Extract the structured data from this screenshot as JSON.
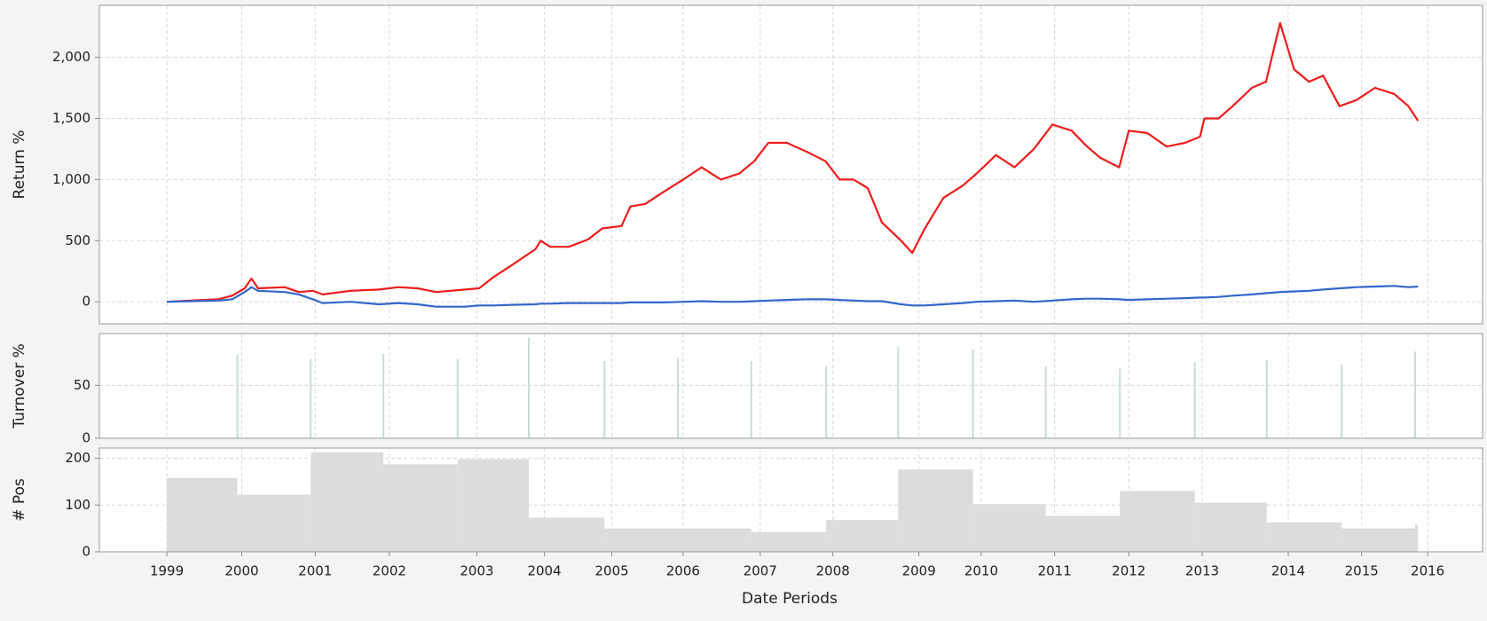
{
  "chart_data": [
    {
      "type": "line",
      "ylabel": "Return %",
      "xlim": [
        1998.09,
        2016.74
      ],
      "ylim": [
        -180,
        2425
      ],
      "yticks": [
        0,
        500,
        {
          "value": 1000,
          "label": "1,000"
        },
        {
          "value": 1500,
          "label": "1,500"
        },
        {
          "value": 2000,
          "label": "2,000"
        }
      ],
      "grid": true,
      "x": [
        1999.0,
        1999.31,
        1999.69,
        1999.88,
        2000.05,
        2000.14,
        2000.23,
        2000.59,
        2000.78,
        2000.97,
        2001.1,
        2001.48,
        2001.86,
        2002.12,
        2002.38,
        2002.63,
        2003.02,
        2003.21,
        2003.4,
        2003.65,
        2003.97,
        2004.04,
        2004.17,
        2004.42,
        2004.68,
        2004.87,
        2005.13,
        2005.25,
        2005.45,
        2005.7,
        2005.96,
        2006.21,
        2006.47,
        2006.72,
        2006.92,
        2007.11,
        2007.36,
        2007.62,
        2007.88,
        2008.07,
        2008.26,
        2008.45,
        2008.64,
        2008.9,
        2009.05,
        2009.22,
        2009.47,
        2009.73,
        2009.92,
        2010.18,
        2010.43,
        2010.69,
        2010.94,
        2011.2,
        2011.39,
        2011.58,
        2011.84,
        2011.97,
        2012.22,
        2012.48,
        2012.73,
        2012.93,
        2012.99,
        2013.18,
        2013.37,
        2013.63,
        2013.82,
        2014.01,
        2014.2,
        2014.4,
        2014.59,
        2014.81,
        2015.04,
        2015.29,
        2015.55,
        2015.74,
        2015.87
      ],
      "series": [
        {
          "color": "#ee1c1c",
          "values": [
            0,
            10,
            20,
            50,
            110,
            190,
            110,
            120,
            80,
            90,
            60,
            90,
            100,
            120,
            110,
            80,
            100,
            110,
            200,
            300,
            430,
            500,
            450,
            450,
            510,
            600,
            620,
            780,
            800,
            900,
            1000,
            1100,
            1000,
            1050,
            1150,
            1300,
            1300,
            1230,
            1150,
            1000,
            1000,
            930,
            650,
            500,
            400,
            600,
            850,
            950,
            1050,
            1200,
            1100,
            1250,
            1450,
            1400,
            1280,
            1180,
            1100,
            1400,
            1380,
            1270,
            1300,
            1350,
            1500,
            1500,
            1600,
            1750,
            1800,
            2280,
            1900,
            1800,
            1850,
            1600,
            1650,
            1750,
            1700,
            1600,
            1480
          ]
        },
        {
          "color": "#3366cc",
          "values": [
            0,
            5,
            10,
            20,
            80,
            120,
            90,
            80,
            60,
            20,
            -10,
            0,
            -20,
            -10,
            -20,
            -40,
            -40,
            -30,
            -30,
            -25,
            -20,
            -15,
            -15,
            -10,
            -10,
            -10,
            -10,
            -5,
            -5,
            -5,
            0,
            5,
            0,
            0,
            5,
            10,
            15,
            20,
            20,
            15,
            10,
            5,
            5,
            -20,
            -30,
            -30,
            -20,
            -10,
            0,
            5,
            10,
            0,
            10,
            20,
            25,
            25,
            20,
            15,
            20,
            25,
            30,
            35,
            35,
            40,
            50,
            60,
            70,
            80,
            85,
            90,
            100,
            110,
            120,
            125,
            130,
            120,
            125
          ]
        }
      ]
    },
    {
      "type": "bar",
      "ylabel": "Turnover %",
      "xlim": [
        1998.09,
        2016.74
      ],
      "ylim": [
        0,
        99
      ],
      "yticks": [
        0,
        50
      ],
      "grid": true,
      "color": "#c9dcdc",
      "x": [
        1999.95,
        2000.94,
        2001.92,
        2002.92,
        2003.88,
        2004.9,
        2005.89,
        2006.88,
        2007.89,
        2008.86,
        2009.87,
        2010.85,
        2011.85,
        2012.86,
        2013.83,
        2014.84,
        2015.83
      ],
      "values": [
        79,
        75,
        80,
        75,
        95,
        73,
        76,
        73,
        68,
        86,
        84,
        68,
        66,
        72,
        74,
        70,
        82
      ]
    },
    {
      "type": "histogram",
      "ylabel": "# Pos",
      "xlabel": "Date Periods",
      "xlim": [
        1998.09,
        2016.74
      ],
      "ylim": [
        0,
        222
      ],
      "yticks": [
        0,
        100,
        200
      ],
      "grid": true,
      "color": "#dcdcdc",
      "xticks": [
        1999,
        {
          "value": 2000.01,
          "label": "2000"
        },
        2001,
        2002,
        {
          "value": 2003.18,
          "label": "2003"
        },
        {
          "value": 2004.09,
          "label": "2004"
        },
        2005,
        {
          "value": 2005.96,
          "label": "2006"
        },
        2007,
        {
          "value": 2007.98,
          "label": "2008"
        },
        {
          "value": 2009.14,
          "label": "2009"
        },
        {
          "value": 2009.98,
          "label": "2010"
        },
        {
          "value": 2010.97,
          "label": "2011"
        },
        {
          "value": 2011.97,
          "label": "2012"
        },
        {
          "value": 2012.96,
          "label": "2013"
        },
        {
          "value": 2014.12,
          "label": "2014"
        },
        {
          "value": 2015.11,
          "label": "2015"
        },
        2016
      ],
      "bins": [
        1999.0,
        1999.95,
        2000.94,
        2001.92,
        2002.92,
        2003.88,
        2004.9,
        2005.89,
        2006.88,
        2007.89,
        2008.86,
        2009.87,
        2010.85,
        2011.85,
        2012.86,
        2013.83,
        2014.84,
        2015.83,
        2015.87
      ],
      "values": [
        158,
        122,
        213,
        187,
        198,
        73,
        50,
        50,
        42,
        68,
        176,
        102,
        77,
        130,
        105,
        63,
        50,
        58
      ]
    }
  ]
}
